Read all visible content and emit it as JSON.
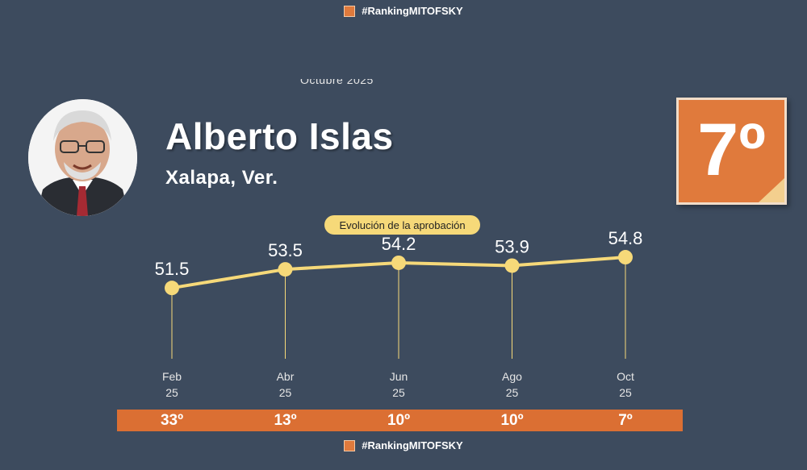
{
  "hashtag": "#RankingMITOFSKY",
  "period": "Octubre  2025",
  "profile": {
    "name": "Alberto Islas",
    "city": "Xalapa, Ver.",
    "rank": "7º"
  },
  "chart_title": "Evolución de la aprobación",
  "colors": {
    "background": "#3d4b5e",
    "accent_orange": "#e07a3c",
    "rank_bar": "#db6f33",
    "line": "#f6d979"
  },
  "chart_data": {
    "type": "line",
    "title": "Evolución de la aprobación",
    "categories": [
      "Feb 25",
      "Abr 25",
      "Jun 25",
      "Ago 25",
      "Oct 25"
    ],
    "x_labels": [
      {
        "month": "Feb",
        "year": "25"
      },
      {
        "month": "Abr",
        "year": "25"
      },
      {
        "month": "Jun",
        "year": "25"
      },
      {
        "month": "Ago",
        "year": "25"
      },
      {
        "month": "Oct",
        "year": "25"
      }
    ],
    "values": [
      51.5,
      53.5,
      54.2,
      53.9,
      54.8
    ],
    "value_labels": [
      "51.5",
      "53.5",
      "54.2",
      "53.9",
      "54.8"
    ],
    "ranks": [
      "33º",
      "13º",
      "10º",
      "10º",
      "7º"
    ],
    "ylim": [
      40,
      60
    ],
    "grid": false,
    "legend": "none"
  }
}
